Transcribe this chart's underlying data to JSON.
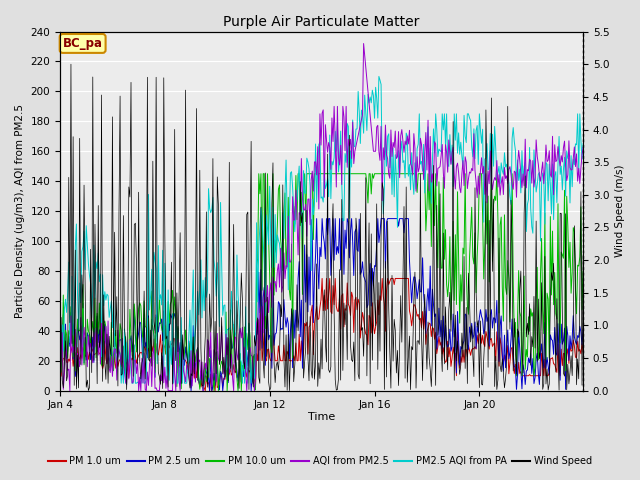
{
  "title": "Purple Air Particulate Matter",
  "xlabel": "Time",
  "ylabel_left": "Particle Density (ug/m3), AQI from PM2.5",
  "ylabel_right": "Wind Speed (m/s)",
  "annotation_text": "BC_pa",
  "ylim_left": [
    0,
    240
  ],
  "ylim_right": [
    0,
    5.5
  ],
  "yticks_left": [
    0,
    20,
    40,
    60,
    80,
    100,
    120,
    140,
    160,
    180,
    200,
    220,
    240
  ],
  "yticks_right": [
    0.0,
    0.5,
    1.0,
    1.5,
    2.0,
    2.5,
    3.0,
    3.5,
    4.0,
    4.5,
    5.0,
    5.5
  ],
  "xtick_labels": [
    "Jan 4",
    "Jan 8",
    "Jan 12",
    "Jan 16",
    "Jan 20"
  ],
  "xtick_positions": [
    0,
    96,
    192,
    288,
    384
  ],
  "n_points": 480,
  "colors": {
    "pm1": "#cc0000",
    "pm25": "#0000cc",
    "pm10": "#00bb00",
    "aqi_pm25": "#9900cc",
    "pm25_aqi_pa": "#00cccc",
    "wind": "#000000"
  },
  "legend_labels": [
    "PM 1.0 um",
    "PM 2.5 um",
    "PM 10.0 um",
    "AQI from PM2.5",
    "PM2.5 AQI from PA",
    "Wind Speed"
  ],
  "background_color": "#e0e0e0",
  "plot_bg_color": "#ececec",
  "annotation_bg": "#ffffaa",
  "annotation_border": "#cc8800",
  "annotation_text_color": "#880000",
  "grid_color": "#ffffff"
}
